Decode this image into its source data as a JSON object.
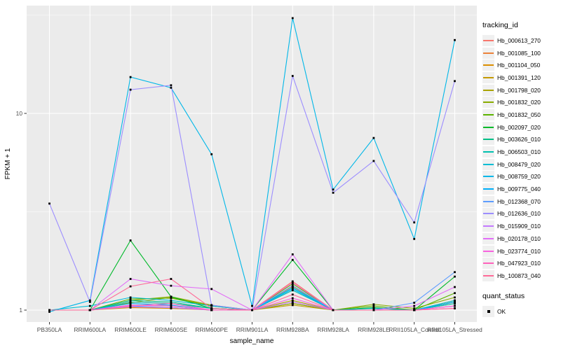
{
  "figure": {
    "panel_bg": "#EBEBEB",
    "grid_color": "#FFFFFF",
    "axis_text_color": "#4D4D4D",
    "point_color": "#000000",
    "y_axis": {
      "title": "FPKM + 1"
    },
    "x_axis": {
      "title": "sample_name"
    }
  },
  "legend": {
    "tracking_title": "tracking_id",
    "quant_title": "quant_status",
    "quant_label": "OK"
  },
  "chart_data": {
    "type": "line",
    "title": "",
    "xlabel": "sample_name",
    "ylabel": "FPKM + 1",
    "y_scale": "log10",
    "ylim": [
      0.87,
      34.7
    ],
    "y_major_ticks": [
      1,
      10
    ],
    "y_minor_ticks": [
      3.162,
      31.62
    ],
    "grid": true,
    "legend_position": "right",
    "marker": "filled-black-square quant_status=OK on every point",
    "categories": [
      "PB350LA",
      "RRIM600LA",
      "RRIM600LE",
      "RRIM600SE",
      "RRIM600PE",
      "RRIM901LA",
      "RRIM928BA",
      "RRIM928LA",
      "RRIM928LE",
      "RRII105LA_Control",
      "RRII105LA_Stressed"
    ],
    "series": [
      {
        "name": "Hb_000613_270",
        "color": "#F8766D",
        "values": [
          1.0,
          1.0,
          1.1,
          1.08,
          1.02,
          1.0,
          1.4,
          1.0,
          1.0,
          1.0,
          1.05
        ]
      },
      {
        "name": "Hb_001085_100",
        "color": "#EC8239",
        "values": [
          1.0,
          1.0,
          1.06,
          1.05,
          1.0,
          1.0,
          1.32,
          1.0,
          1.0,
          1.0,
          1.08
        ]
      },
      {
        "name": "Hb_001104_050",
        "color": "#DB8E00",
        "values": [
          1.0,
          1.0,
          1.03,
          1.02,
          1.0,
          1.0,
          1.08,
          1.0,
          1.0,
          1.0,
          1.1
        ]
      },
      {
        "name": "Hb_001391_120",
        "color": "#C49A00",
        "values": [
          1.0,
          1.0,
          1.04,
          1.03,
          1.0,
          1.0,
          1.06,
          1.0,
          1.0,
          1.0,
          1.12
        ]
      },
      {
        "name": "Hb_001798_020",
        "color": "#AAA400",
        "values": [
          1.0,
          1.0,
          1.09,
          1.16,
          1.05,
          1.0,
          1.12,
          1.0,
          1.02,
          1.0,
          1.1
        ]
      },
      {
        "name": "Hb_001832_020",
        "color": "#89AC00",
        "values": [
          1.0,
          1.0,
          1.12,
          1.17,
          1.06,
          1.0,
          1.08,
          1.0,
          1.07,
          1.02,
          1.16
        ]
      },
      {
        "name": "Hb_001832_050",
        "color": "#5CB300",
        "values": [
          1.0,
          1.0,
          1.14,
          1.15,
          1.05,
          1.0,
          1.36,
          1.0,
          1.05,
          1.0,
          1.22
        ]
      },
      {
        "name": "Hb_002097_020",
        "color": "#00B92A",
        "values": [
          1.0,
          1.0,
          2.26,
          1.17,
          1.02,
          1.0,
          1.8,
          1.0,
          1.03,
          1.0,
          1.48
        ]
      },
      {
        "name": "Hb_003626_010",
        "color": "#00BE85",
        "values": [
          1.0,
          1.0,
          1.12,
          1.1,
          1.02,
          1.0,
          1.3,
          1.0,
          1.0,
          1.0,
          1.1
        ]
      },
      {
        "name": "Hb_006503_010",
        "color": "#00C0AF",
        "values": [
          1.0,
          1.0,
          1.1,
          1.08,
          1.02,
          1.0,
          1.26,
          1.0,
          1.0,
          1.0,
          1.08
        ]
      },
      {
        "name": "Hb_008479_020",
        "color": "#00BDD4",
        "values": [
          1.0,
          1.05,
          1.16,
          1.12,
          1.05,
          1.0,
          1.3,
          1.0,
          1.02,
          1.0,
          1.12
        ]
      },
      {
        "name": "Hb_008759_020",
        "color": "#00B7E8",
        "values": [
          0.98,
          1.12,
          15.3,
          13.5,
          6.2,
          1.05,
          30.5,
          4.1,
          7.5,
          2.3,
          23.6
        ]
      },
      {
        "name": "Hb_009775_040",
        "color": "#00AEF8",
        "values": [
          1.0,
          1.0,
          1.08,
          1.06,
          1.0,
          1.0,
          1.28,
          1.0,
          1.0,
          1.0,
          1.1
        ]
      },
      {
        "name": "Hb_012368_070",
        "color": "#5E9DFF",
        "values": [
          1.0,
          1.0,
          1.05,
          1.03,
          1.0,
          1.0,
          1.33,
          1.0,
          1.0,
          1.09,
          1.56
        ]
      },
      {
        "name": "Hb_012636_010",
        "color": "#9C8DFF",
        "values": [
          3.48,
          1.1,
          13.2,
          13.9,
          1.06,
          1.0,
          15.5,
          3.95,
          5.73,
          2.79,
          14.6
        ]
      },
      {
        "name": "Hb_015909_010",
        "color": "#C379FF",
        "values": [
          1.0,
          1.0,
          1.04,
          1.03,
          1.0,
          1.0,
          1.1,
          1.0,
          1.0,
          1.0,
          1.05
        ]
      },
      {
        "name": "Hb_020178_010",
        "color": "#E26EF7",
        "values": [
          1.0,
          1.0,
          1.44,
          1.33,
          1.28,
          1.0,
          1.92,
          1.0,
          1.0,
          1.05,
          1.31
        ]
      },
      {
        "name": "Hb_023774_010",
        "color": "#F863DF",
        "values": [
          1.0,
          1.0,
          1.06,
          1.05,
          1.0,
          1.0,
          1.15,
          1.0,
          1.0,
          1.0,
          1.05
        ]
      },
      {
        "name": "Hb_047923_010",
        "color": "#FF62BC",
        "values": [
          1.0,
          1.0,
          1.05,
          1.08,
          1.0,
          1.0,
          1.38,
          1.0,
          1.0,
          1.0,
          1.02
        ]
      },
      {
        "name": "Hb_100873_040",
        "color": "#FF6A98",
        "values": [
          1.0,
          1.0,
          1.32,
          1.44,
          1.02,
          1.0,
          1.2,
          1.0,
          1.0,
          1.0,
          1.02
        ]
      }
    ]
  }
}
